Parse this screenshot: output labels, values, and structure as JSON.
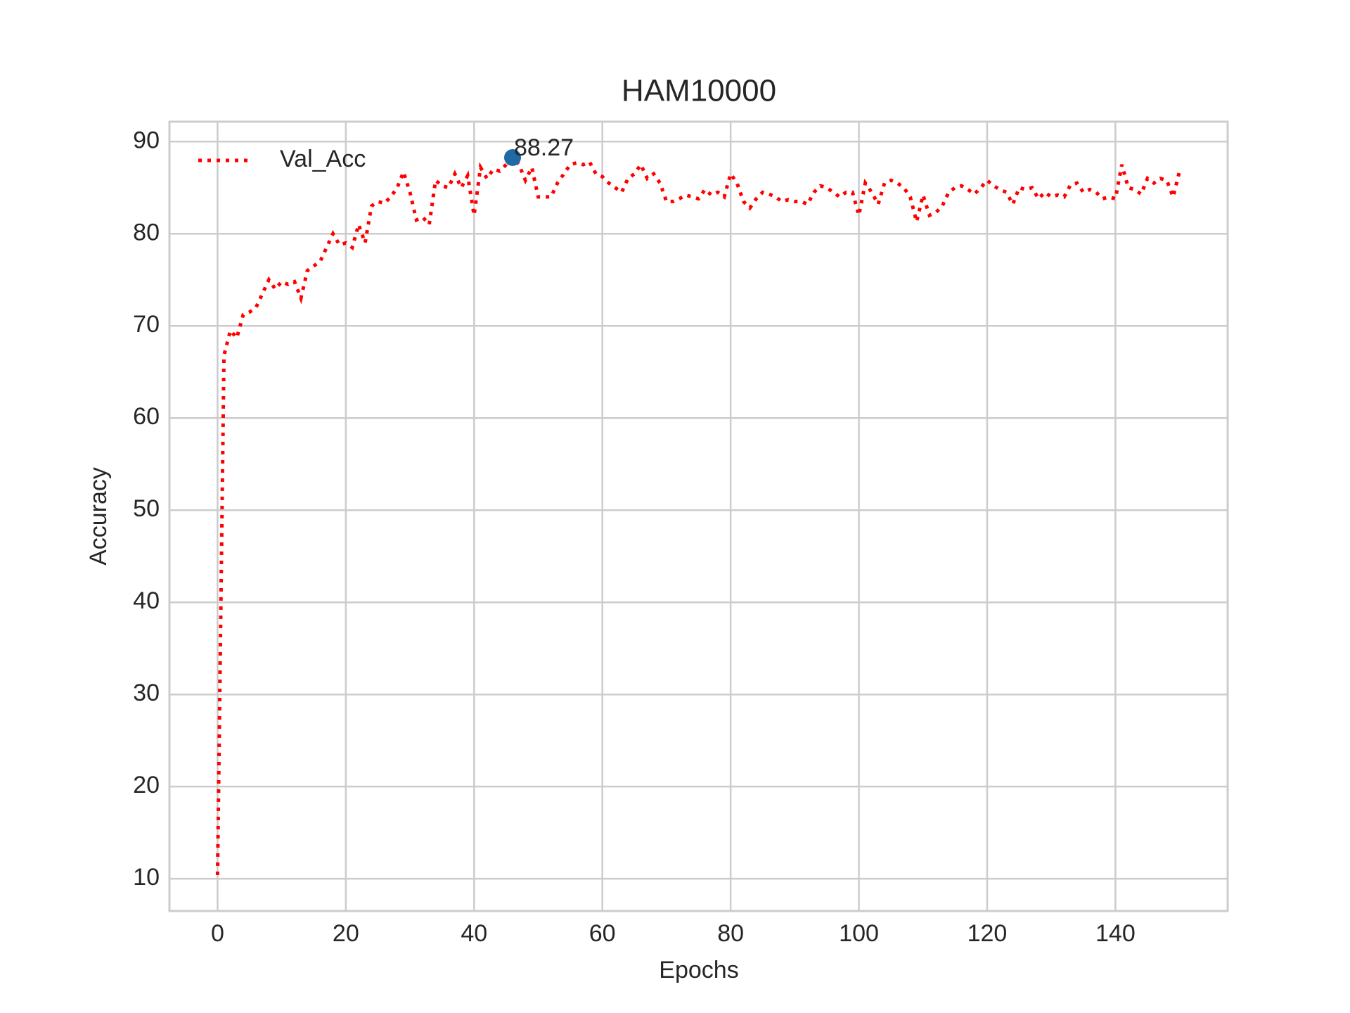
{
  "chart_data": {
    "type": "line",
    "title": "HAM10000",
    "x_label": "Epochs",
    "y_label": "Accuracy",
    "x": [
      0,
      1,
      2,
      3,
      4,
      5,
      6,
      7,
      8,
      9,
      10,
      11,
      12,
      13,
      14,
      15,
      16,
      17,
      18,
      19,
      20,
      21,
      22,
      23,
      24,
      25,
      26,
      27,
      28,
      29,
      30,
      31,
      32,
      33,
      34,
      35,
      36,
      37,
      38,
      39,
      40,
      41,
      42,
      43,
      44,
      45,
      46,
      47,
      48,
      49,
      50,
      51,
      52,
      53,
      54,
      55,
      56,
      57,
      58,
      59,
      60,
      61,
      62,
      63,
      64,
      65,
      66,
      67,
      68,
      69,
      70,
      71,
      72,
      73,
      74,
      75,
      76,
      77,
      78,
      79,
      80,
      81,
      82,
      83,
      84,
      85,
      86,
      87,
      88,
      89,
      90,
      91,
      92,
      93,
      94,
      95,
      96,
      97,
      98,
      99,
      100,
      101,
      102,
      103,
      104,
      105,
      106,
      107,
      108,
      109,
      110,
      111,
      112,
      113,
      114,
      115,
      116,
      117,
      118,
      119,
      120,
      121,
      122,
      123,
      124,
      125,
      126,
      127,
      128,
      129,
      130,
      131,
      132,
      133,
      134,
      135,
      136,
      137,
      138,
      139,
      140,
      141,
      142,
      143,
      144,
      145,
      146,
      147,
      148,
      149,
      150
    ],
    "series": [
      {
        "name": "Val_Acc",
        "color": "#ff0000",
        "line_style": "dotted",
        "values": [
          10.4,
          66.8,
          69.5,
          68.7,
          71.2,
          71.5,
          72,
          73.5,
          75,
          74,
          74.8,
          74.5,
          74.8,
          73,
          76,
          76.5,
          77,
          78.5,
          80,
          78.8,
          79,
          78.5,
          81,
          79,
          83,
          83.5,
          83.3,
          84,
          85,
          86.7,
          84.5,
          81.5,
          81.8,
          81,
          85.8,
          85.2,
          85,
          86.5,
          85,
          86.3,
          82,
          87.2,
          86,
          87,
          86.8,
          87.5,
          88.27,
          87.5,
          85.8,
          87.2,
          84,
          84,
          84,
          85.5,
          86.5,
          87.5,
          87.7,
          87.5,
          87.8,
          86.5,
          86.2,
          85.5,
          85,
          84.5,
          86,
          86.5,
          87.5,
          86,
          86.5,
          85.5,
          83.5,
          83.5,
          83.8,
          84.2,
          84,
          83.8,
          84.8,
          84.2,
          84.5,
          84,
          86.5,
          85.5,
          83.5,
          82.8,
          83.8,
          84.5,
          84.3,
          84,
          83.5,
          83.7,
          83.5,
          83.5,
          83.2,
          84.5,
          85.2,
          85,
          84.5,
          84,
          84.5,
          84.5,
          82,
          85.5,
          84.5,
          83.2,
          85.5,
          85.8,
          85.5,
          85,
          84,
          81.3,
          84.2,
          82,
          82.3,
          83,
          84.5,
          85,
          85.2,
          84.8,
          84.3,
          85,
          85.8,
          85.2,
          84.8,
          84.5,
          83.2,
          85,
          84.8,
          85,
          83.8,
          84.5,
          84,
          84.2,
          84,
          85.3,
          85.5,
          84.5,
          84.8,
          84.5,
          83.8,
          84,
          83.8,
          87.5,
          85,
          84.8,
          84.3,
          86,
          85.5,
          86,
          85.8,
          84,
          86.8
        ]
      }
    ],
    "annotation": {
      "x": 46,
      "y": 88.27,
      "text": "88.27",
      "color": "#1f6aa5"
    },
    "xlim": [
      -7.5,
      157.5
    ],
    "ylim": [
      6.5,
      92.16
    ],
    "xticks": [
      0,
      20,
      40,
      60,
      80,
      100,
      120,
      140
    ],
    "yticks": [
      10,
      20,
      30,
      40,
      50,
      60,
      70,
      80,
      90
    ],
    "grid": true,
    "legend": "upper left"
  }
}
